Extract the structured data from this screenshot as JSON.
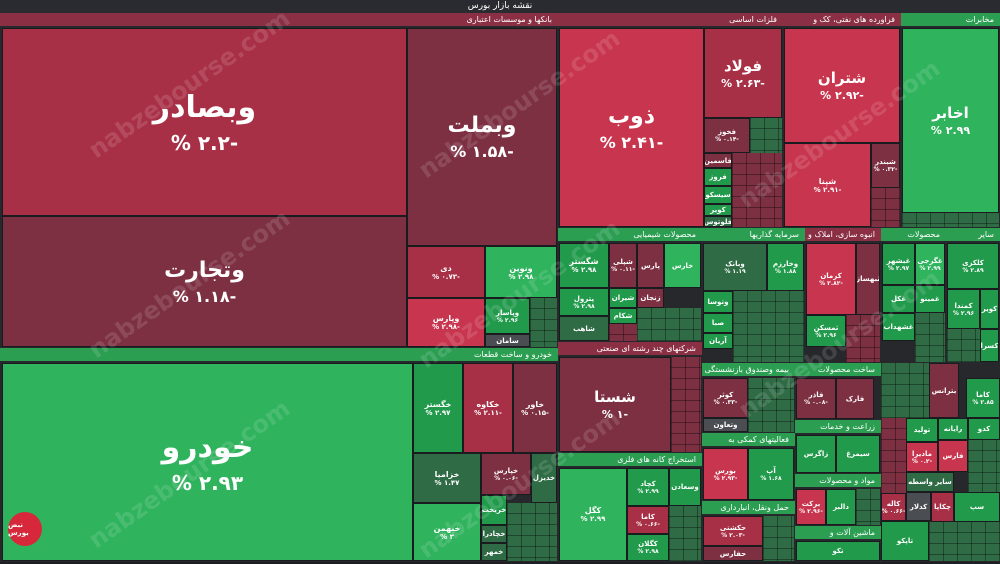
{
  "page_title": "نقشه بازار بورس",
  "sections": {
    "banks": "بانکها و موسسات اعتباری",
    "auto": "خودرو و ساخت قطعات",
    "metals": "فلزات اساسی",
    "oil": "فراورده های نفتی، کک و",
    "telecom": "مخابرات",
    "chemicals": "محصولات شیمیایی",
    "investment": "سرمایه گذاریها",
    "construction": "انبوه سازی، املاک و",
    "products": "محصولات",
    "other": "سایر",
    "multi": "شرکتهای چند رشته ای صنعتی",
    "mining": "استخراج کانه های فلزی",
    "insurance": "بیمه وصندوق بازنشستگی",
    "building_products": "ساخت محصولات",
    "agri": "زراعت و خدمات",
    "support": "فعالیتهای کمکی به",
    "food": "مواد و محصولات",
    "transport": "حمل ونقل، انبارداری",
    "machinery": "ماشین آلات و",
    "extraction": "استخراج",
    "broker": "سایر واسطه"
  },
  "tiles": {
    "vbsadr": {
      "name": "وبصادر",
      "pct": "% ۲.۲-"
    },
    "vtejarat": {
      "name": "وتجارت",
      "pct": "% ۱.۱۸-"
    },
    "vbmelat": {
      "name": "وبملت",
      "pct": "% ۱.۵۸-"
    },
    "dey": {
      "name": "دی",
      "pct": "% ۰.۷۳-"
    },
    "vpars": {
      "name": "وپارس",
      "pct": "% ۲.۹۸-"
    },
    "vnovin": {
      "name": "ونوین",
      "pct": "% ۲.۹۸"
    },
    "vpasar": {
      "name": "وپاسار",
      "pct": "% ۲.۹۶"
    },
    "saman": {
      "name": "سامان",
      "pct": ""
    },
    "khodro": {
      "name": "خودرو",
      "pct": "% ۲.۹۳"
    },
    "khgostar": {
      "name": "خگستر",
      "pct": "% ۲.۹۷"
    },
    "khekaveh": {
      "name": "خکاوه",
      "pct": "% ۲.۱۱-"
    },
    "khavar": {
      "name": "خاور",
      "pct": "% ۰.۱۵-"
    },
    "khzamia": {
      "name": "خزامیا",
      "pct": "% ۱.۴۷"
    },
    "khpars": {
      "name": "خپارس",
      "pct": "% ۰.۰۶-"
    },
    "khodabal": {
      "name": "خدیزل",
      "pct": ""
    },
    "khbahman": {
      "name": "خبهمن",
      "pct": "% ۳"
    },
    "khrikht": {
      "name": "خریخت",
      "pct": ""
    },
    "khchadr": {
      "name": "خچادرا",
      "pct": ""
    },
    "khmehr": {
      "name": "خمهر",
      "pct": ""
    },
    "zob": {
      "name": "ذوب",
      "pct": "% ۲.۴۱-"
    },
    "folad": {
      "name": "فولاد",
      "pct": "% ۲.۶۳-"
    },
    "fkhoz": {
      "name": "فخوز",
      "pct": "% ۰.۱۴-"
    },
    "fasmin": {
      "name": "فاسمین",
      "pct": ""
    },
    "frooz": {
      "name": "فروز",
      "pct": ""
    },
    "sisco": {
      "name": "سیسکو",
      "pct": ""
    },
    "kavir": {
      "name": "کویر",
      "pct": ""
    },
    "felozoom": {
      "name": "فلوتوس",
      "pct": ""
    },
    "shatran": {
      "name": "شتران",
      "pct": "% ۲.۹۲-"
    },
    "shepna": {
      "name": "شپنا",
      "pct": "% ۲.۹۱-"
    },
    "shbandar": {
      "name": "شبندر",
      "pct": "% ۰.۳۲-"
    },
    "akhaber": {
      "name": "اخابر",
      "pct": "% ۲.۹۹"
    },
    "shgostar": {
      "name": "شگستر",
      "pct": "% ۲.۹۸"
    },
    "shpali": {
      "name": "شپلی",
      "pct": "% ۰.۱۱-"
    },
    "pars": {
      "name": "پارس",
      "pct": ""
    },
    "khares": {
      "name": "خارس",
      "pct": ""
    },
    "petrol": {
      "name": "پترول",
      "pct": "% ۲.۹۸"
    },
    "shiran": {
      "name": "شیران",
      "pct": ""
    },
    "zangan": {
      "name": "زنجان",
      "pct": ""
    },
    "shkam": {
      "name": "شکام",
      "pct": ""
    },
    "shahab": {
      "name": "شاهب",
      "pct": ""
    },
    "shesta": {
      "name": "شستا",
      "pct": "% ۱-"
    },
    "vbank": {
      "name": "وبانک",
      "pct": "% ۱.۱۹"
    },
    "vkharazm": {
      "name": "وخارزم",
      "pct": "% ۱.۸۸"
    },
    "vtoosa": {
      "name": "وتوسا",
      "pct": ""
    },
    "saba": {
      "name": "صبا",
      "pct": ""
    },
    "arian": {
      "name": "آریان",
      "pct": ""
    },
    "karman": {
      "name": "کرمان",
      "pct": "% ۲.۸۲-"
    },
    "thabahsaz": {
      "name": "ثبهساز",
      "pct": ""
    },
    "thmasken": {
      "name": "ثمسکن",
      "pct": "% ۲.۹۶"
    },
    "gheshahar": {
      "name": "غبشهر",
      "pct": "% ۲.۹۷"
    },
    "ghgorji": {
      "name": "غگرجی",
      "pct": "% ۲.۹۹"
    },
    "ghmino": {
      "name": "غمینو",
      "pct": ""
    },
    "ghshahd": {
      "name": "غشهداب",
      "pct": ""
    },
    "ghak": {
      "name": "غکل",
      "pct": ""
    },
    "kalkzi": {
      "name": "کلکزی",
      "pct": "% ۲.۸۹"
    },
    "kamenad": {
      "name": "کمندا",
      "pct": "% ۲.۹۶"
    },
    "kaveer": {
      "name": "کویر",
      "pct": ""
    },
    "kasra": {
      "name": "کسرا",
      "pct": ""
    },
    "kgol": {
      "name": "کگل",
      "pct": "% ۲.۹۹"
    },
    "kchad": {
      "name": "کچاد",
      "pct": "% ۲.۹۹"
    },
    "kama": {
      "name": "کاما",
      "pct": "% ۰.۶۶-"
    },
    "kdamavand": {
      "name": "کدلار",
      "pct": ""
    },
    "kvasdan": {
      "name": "وسعادن",
      "pct": ""
    },
    "kharam": {
      "name": "کگلان",
      "pct": "% ۲.۹۸"
    },
    "kosar": {
      "name": "کوثر",
      "pct": "% ۰.۳۳-"
    },
    "vtuseh": {
      "name": "وتعاون",
      "pct": ""
    },
    "fakher": {
      "name": "فاذر",
      "pct": "% ۰.۰۸-"
    },
    "farak": {
      "name": "فارک",
      "pct": ""
    },
    "bars": {
      "name": "بورس",
      "pct": "% ۲.۹۳-"
    },
    "arias": {
      "name": "آپ",
      "pct": "% ۱.۶۸"
    },
    "hekmat": {
      "name": "حکشتی",
      "pct": "% ۲.۰۳-"
    },
    "zagros": {
      "name": "زاگرس",
      "pct": ""
    },
    "simorgh": {
      "name": "سیمرغ",
      "pct": ""
    },
    "tolid": {
      "name": "تولید",
      "pct": ""
    },
    "madira": {
      "name": "مادیرا",
      "pct": "% ۰.۲-"
    },
    "raya": {
      "name": "رایانه",
      "pct": ""
    },
    "farsi": {
      "name": "فارس",
      "pct": ""
    },
    "kaleh": {
      "name": "کاله",
      "pct": "% ۰.۶۶-"
    },
    "barkat": {
      "name": "برکت",
      "pct": "% ۲.۹۶-"
    },
    "dalbar": {
      "name": "دالبر",
      "pct": ""
    },
    "chakapa": {
      "name": "چکاپا",
      "pct": ""
    },
    "takhar": {
      "name": "تاپکو",
      "pct": ""
    },
    "tekno": {
      "name": "تکو",
      "pct": ""
    },
    "vkhark": {
      "name": "بترانس",
      "pct": ""
    },
    "kaar": {
      "name": "کاما",
      "pct": "% ۲.۸۵"
    },
    "kadoma": {
      "name": "کدو",
      "pct": ""
    },
    "haplay": {
      "name": "حفارس",
      "pct": ""
    },
    "seaz": {
      "name": "سپ",
      "pct": ""
    },
    "takhab": {
      "name": "ساوه",
      "pct": ""
    }
  },
  "watermark": "nabzebourse.com",
  "logo_text": "نبض بورس"
}
